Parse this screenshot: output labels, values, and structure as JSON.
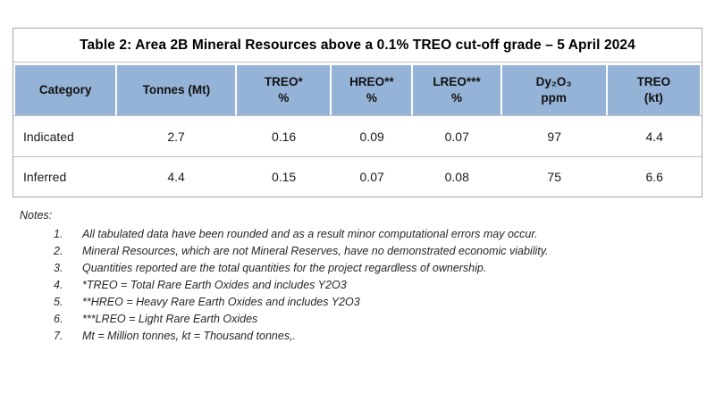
{
  "title": "Table 2: Area 2B Mineral Resources above a 0.1% TREO cut-off grade – 5 April 2024",
  "table": {
    "columns": [
      {
        "line1": "Category",
        "line2": ""
      },
      {
        "line1": "Tonnes (Mt)",
        "line2": ""
      },
      {
        "line1": "TREO*",
        "line2": "%"
      },
      {
        "line1": "HREO**",
        "line2": "%"
      },
      {
        "line1": "LREO***",
        "line2": "%"
      },
      {
        "line1": "Dy₂O₃",
        "line2": "ppm"
      },
      {
        "line1": "TREO",
        "line2": "(kt)"
      }
    ],
    "rows": [
      {
        "category": "Indicated",
        "values": [
          "2.7",
          "0.16",
          "0.09",
          "0.07",
          "97",
          "4.4"
        ]
      },
      {
        "category": "Inferred",
        "values": [
          "4.4",
          "0.15",
          "0.07",
          "0.08",
          "75",
          "6.6"
        ]
      }
    ]
  },
  "notes": {
    "heading": "Notes:",
    "items": [
      {
        "num": "1.",
        "text": "All tabulated data have been rounded and as a result minor computational errors may occur."
      },
      {
        "num": "2.",
        "text": "Mineral Resources, which are not Mineral Reserves, have no demonstrated economic viability."
      },
      {
        "num": "3.",
        "text": "Quantities reported are the total quantities for the project regardless of ownership."
      },
      {
        "num": "4.",
        "text": "*TREO = Total Rare Earth Oxides and includes Y2O3"
      },
      {
        "num": "5.",
        "text": "**HREO = Heavy Rare Earth Oxides and includes Y2O3"
      },
      {
        "num": "6.",
        "text": "***LREO = Light Rare Earth Oxides"
      },
      {
        "num": "7.",
        "text": "Mt = Million tonnes, kt = Thousand tonnes,."
      }
    ]
  },
  "colors": {
    "header_bg": "#95B3D7",
    "cell_border": "#BFBFBF",
    "outer_border": "#A6A6A6"
  }
}
